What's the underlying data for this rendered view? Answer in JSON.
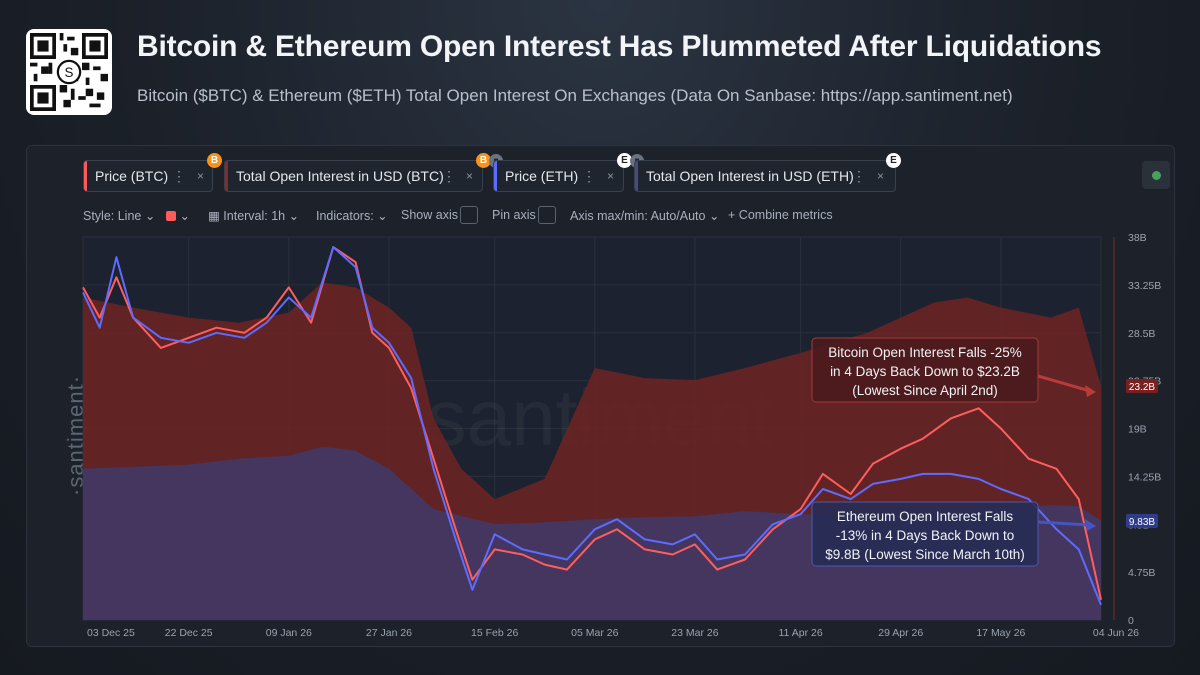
{
  "header": {
    "title": "Bitcoin & Ethereum Open Interest Has Plummeted After Liquidations",
    "subtitle": "Bitcoin ($BTC) & Ethereum ($ETH) Total Open Interest On Exchanges (Data On Sanbase: https://app.santiment.net)"
  },
  "metrics": [
    {
      "label": "Price (BTC)",
      "color": "#ff5b5b",
      "badge": "B",
      "badge_color": "#f7931a"
    },
    {
      "label": "Total Open Interest in USD (BTC)",
      "color": "#8c2a2a",
      "badge": "B",
      "badge_color": "#f7931a"
    },
    {
      "label": "Price (ETH)",
      "color": "#5b6cff",
      "badge": "E",
      "badge_color": "#ffffff"
    },
    {
      "label": "Total Open Interest in USD (ETH)",
      "color": "#4b4a80",
      "badge": "E",
      "badge_color": "#ffffff"
    }
  ],
  "toolbar": {
    "style": "Style: Line",
    "interval": "Interval: 1h",
    "indicators": "Indicators:",
    "show_axis": "Show axis",
    "pin_axis": "Pin axis",
    "axis_maxmin": "Axis max/min: Auto/Auto",
    "combine": "Combine metrics"
  },
  "watermark": {
    "side": "·santiment·",
    "center": "santiment"
  },
  "chart_data": {
    "type": "area",
    "x_ticks": [
      "03 Dec 25",
      "22 Dec 25",
      "09 Jan 26",
      "27 Jan 26",
      "15 Feb 26",
      "05 Mar 26",
      "23 Mar 26",
      "11 Apr 26",
      "29 Apr 26",
      "17 May 26",
      "04 Jun 26"
    ],
    "y_ticks": [
      "38B",
      "33.25B",
      "28.5B",
      "23.75B",
      "19B",
      "14.25B",
      "9.5B",
      "4.75B",
      "0"
    ],
    "ylim": [
      0,
      38
    ],
    "y_unit": "B",
    "series": [
      {
        "name": "Total Open Interest in USD (BTC)",
        "kind": "area",
        "color": "#6e2323",
        "x": [
          "03 Dec 25",
          "12 Dec 25",
          "22 Dec 25",
          "31 Dec 25",
          "09 Jan 26",
          "15 Jan 26",
          "21 Jan 26",
          "27 Jan 26",
          "31 Jan 26",
          "04 Feb 26",
          "09 Feb 26",
          "15 Feb 26",
          "24 Feb 26",
          "05 Mar 26",
          "14 Mar 26",
          "23 Mar 26",
          "01 Apr 26",
          "11 Apr 26",
          "17 Apr 26",
          "23 Apr 26",
          "29 Apr 26",
          "05 May 26",
          "11 May 26",
          "17 May 26",
          "26 May 26",
          "31 May 26",
          "04 Jun 26"
        ],
        "values": [
          32,
          31,
          30,
          29.5,
          30.5,
          33.5,
          33,
          31,
          29,
          20,
          15,
          12,
          14,
          25,
          24,
          23.8,
          25,
          26.5,
          27.5,
          28.5,
          30,
          31.5,
          32,
          31,
          30,
          31,
          23.2
        ]
      },
      {
        "name": "Total Open Interest in USD (ETH)",
        "kind": "area",
        "color": "#3f3a6a",
        "x": [
          "03 Dec 25",
          "12 Dec 25",
          "22 Dec 25",
          "31 Dec 25",
          "09 Jan 26",
          "15 Jan 26",
          "21 Jan 26",
          "27 Jan 26",
          "04 Feb 26",
          "15 Feb 26",
          "24 Feb 26",
          "05 Mar 26",
          "14 Mar 26",
          "23 Mar 26",
          "01 Apr 26",
          "11 Apr 26",
          "20 Apr 26",
          "29 Apr 26",
          "08 May 26",
          "17 May 26",
          "26 May 26",
          "31 May 26",
          "04 Jun 26"
        ],
        "values": [
          15,
          15.2,
          15.4,
          16,
          16.3,
          17.2,
          16.8,
          15,
          11,
          9.5,
          9.7,
          10,
          10.2,
          10.3,
          10.8,
          10.5,
          10.4,
          10.2,
          10.6,
          11,
          11.4,
          11.3,
          9.83
        ]
      },
      {
        "name": "Price (BTC)",
        "kind": "line",
        "color": "#ff5e5e",
        "x": [
          "03 Dec 25",
          "06 Dec 25",
          "09 Dec 25",
          "12 Dec 25",
          "17 Dec 25",
          "22 Dec 25",
          "27 Dec 25",
          "01 Jan 26",
          "05 Jan 26",
          "09 Jan 26",
          "13 Jan 26",
          "17 Jan 26",
          "21 Jan 26",
          "24 Jan 26",
          "27 Jan 26",
          "31 Jan 26",
          "04 Feb 26",
          "08 Feb 26",
          "11 Feb 26",
          "15 Feb 26",
          "20 Feb 26",
          "24 Feb 26",
          "28 Feb 26",
          "05 Mar 26",
          "09 Mar 26",
          "14 Mar 26",
          "19 Mar 26",
          "23 Mar 26",
          "27 Mar 26",
          "01 Apr 26",
          "06 Apr 26",
          "11 Apr 26",
          "15 Apr 26",
          "20 Apr 26",
          "24 Apr 26",
          "29 Apr 26",
          "03 May 26",
          "08 May 26",
          "13 May 26",
          "17 May 26",
          "22 May 26",
          "27 May 26",
          "31 May 26",
          "04 Jun 26"
        ],
        "values": [
          33,
          30,
          34,
          30,
          27,
          28,
          29,
          28.5,
          30,
          33,
          29.5,
          37,
          35.5,
          28.5,
          27,
          23,
          16,
          9,
          4,
          7,
          6.5,
          5.5,
          5,
          8,
          9,
          7,
          6.5,
          7.5,
          5,
          6,
          9,
          11,
          14.5,
          12.5,
          15.5,
          17,
          18,
          20,
          21,
          19,
          16,
          15,
          12,
          2
        ]
      },
      {
        "name": "Price (ETH)",
        "kind": "line",
        "color": "#5d6bff",
        "x": [
          "03 Dec 25",
          "06 Dec 25",
          "09 Dec 25",
          "12 Dec 25",
          "17 Dec 25",
          "22 Dec 25",
          "27 Dec 25",
          "01 Jan 26",
          "05 Jan 26",
          "09 Jan 26",
          "13 Jan 26",
          "17 Jan 26",
          "21 Jan 26",
          "24 Jan 26",
          "27 Jan 26",
          "31 Jan 26",
          "04 Feb 26",
          "08 Feb 26",
          "11 Feb 26",
          "15 Feb 26",
          "20 Feb 26",
          "24 Feb 26",
          "28 Feb 26",
          "05 Mar 26",
          "09 Mar 26",
          "14 Mar 26",
          "19 Mar 26",
          "23 Mar 26",
          "27 Mar 26",
          "01 Apr 26",
          "06 Apr 26",
          "11 Apr 26",
          "15 Apr 26",
          "20 Apr 26",
          "24 Apr 26",
          "29 Apr 26",
          "03 May 26",
          "08 May 26",
          "13 May 26",
          "17 May 26",
          "22 May 26",
          "27 May 26",
          "31 May 26",
          "04 Jun 26"
        ],
        "values": [
          32.5,
          29,
          36,
          30,
          28,
          27.5,
          28.5,
          28,
          29.5,
          32,
          30,
          37,
          35,
          29,
          27.5,
          24,
          15,
          8,
          3,
          8.5,
          7,
          6.5,
          6,
          9,
          10,
          8,
          7.5,
          8.5,
          6,
          6.5,
          9.5,
          10.5,
          13,
          12,
          13.5,
          14,
          14.5,
          14.5,
          14,
          13,
          12,
          9,
          7,
          1.5
        ]
      }
    ],
    "labels": [
      {
        "name": "Total Open Interest in USD (BTC)",
        "value": "23.2B",
        "color": "#7a1f1f"
      },
      {
        "name": "Total Open Interest in USD (ETH)",
        "value": "9.83B",
        "color": "#2f3c8a"
      }
    ],
    "annotations": [
      {
        "series": "BTC",
        "lines": [
          "Bitcoin Open Interest Falls -25%",
          "in 4 Days Back Down to $23.2B",
          "(Lowest Since April 2nd)"
        ]
      },
      {
        "series": "ETH",
        "lines": [
          "Ethereum Open Interest Falls",
          "-13% in 4 Days Back Down to",
          "$9.8B (Lowest Since March 10th)"
        ]
      }
    ]
  }
}
